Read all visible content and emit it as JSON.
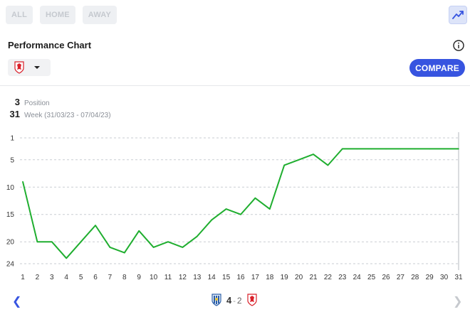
{
  "filters": [
    {
      "label": "ALL"
    },
    {
      "label": "HOME"
    },
    {
      "label": "AWAY"
    }
  ],
  "header": {
    "title": "Performance Chart",
    "compare_label": "COMPARE",
    "info_icon": "info-icon",
    "view_icon": "trend-line-icon"
  },
  "team_select": {
    "crest": "red-lion-crest-icon",
    "arrow": "caret-down-icon"
  },
  "stats": {
    "position_value": "3",
    "position_label": "Position",
    "week_value": "31",
    "week_label": "Week (31/03/23 - 07/04/23)"
  },
  "match": {
    "home_score": "4",
    "separator": "-",
    "away_score": "2",
    "home_crest": "blue-white-crest-icon",
    "away_crest": "red-lion-crest-icon"
  },
  "colors": {
    "accent": "#3754e0",
    "line": "#1fae2f",
    "grid": "#c9cdd2"
  },
  "chart_data": {
    "type": "line",
    "x": [
      1,
      2,
      3,
      4,
      5,
      6,
      7,
      8,
      9,
      10,
      11,
      12,
      13,
      14,
      15,
      16,
      17,
      18,
      19,
      20,
      21,
      22,
      23,
      24,
      25,
      26,
      27,
      28,
      29,
      30,
      31
    ],
    "series": [
      {
        "values": [
          9,
          20,
          20,
          23,
          20,
          17,
          21,
          22,
          18,
          21,
          20,
          21,
          19,
          16,
          14,
          15,
          12,
          14,
          6,
          5,
          4,
          6,
          3,
          3,
          3,
          3,
          3,
          3,
          3,
          3,
          3
        ]
      }
    ],
    "y_ticks": [
      1,
      5,
      10,
      15,
      20,
      24
    ],
    "ylim": [
      1,
      24
    ],
    "y_inverted": true,
    "grid": "dashed horizontal"
  }
}
